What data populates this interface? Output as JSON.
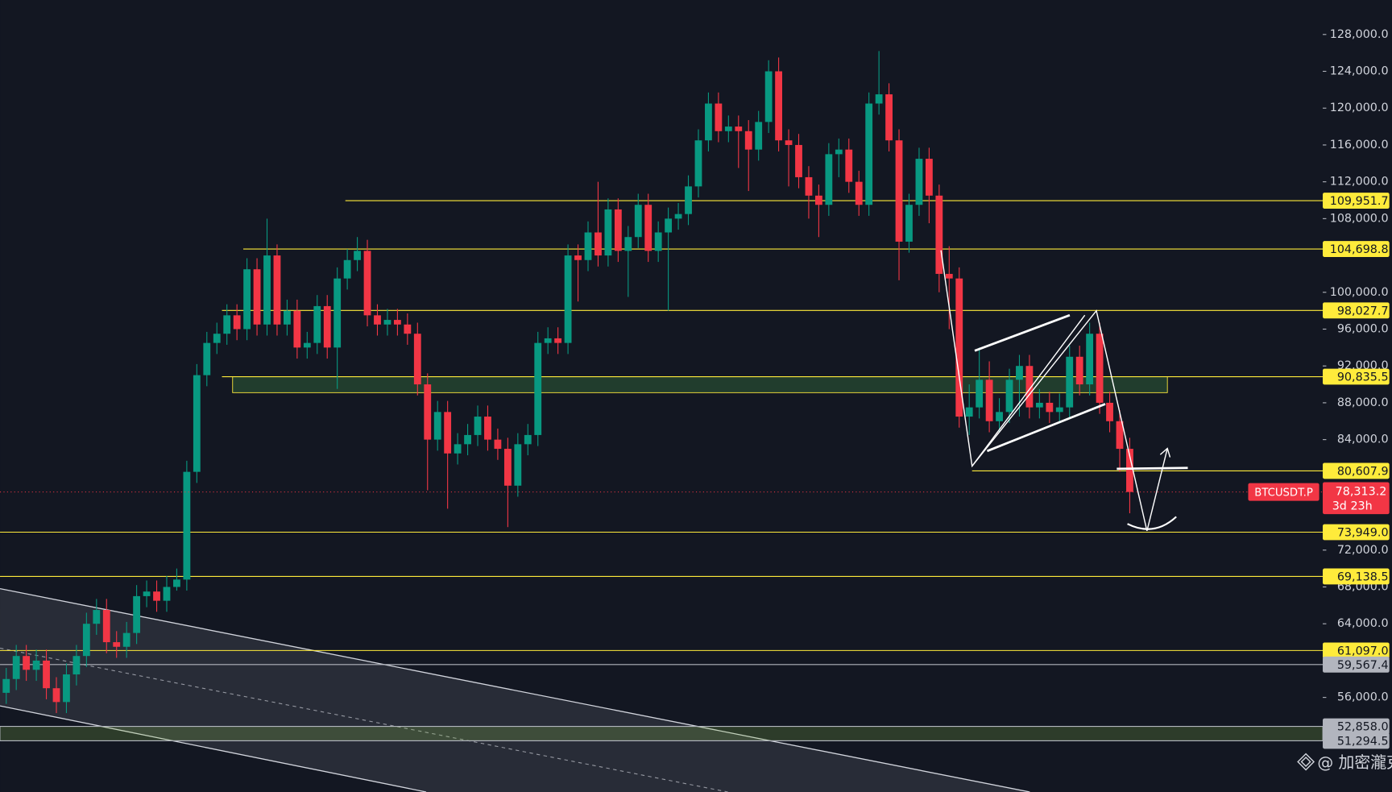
{
  "chart_data": {
    "type": "candlestick",
    "symbol": "BTCUSDT.P",
    "up_color": "#089981",
    "down_color": "#f23645",
    "open": [
      56500,
      58000,
      60500,
      59000,
      60000,
      57000,
      55500,
      58500,
      60500,
      64000,
      65500,
      62000,
      61500,
      63000,
      67000,
      67500,
      66500,
      68000,
      68800,
      80500,
      91000,
      94500,
      95500,
      97500,
      96000,
      102500,
      96500,
      104000,
      96500,
      98000,
      94000,
      94500,
      98500,
      94000,
      101500,
      103500,
      104500,
      97500,
      96500,
      97000,
      96500,
      95500,
      90000,
      84000,
      87000,
      82500,
      83500,
      84500,
      86500,
      84000,
      83000,
      79000,
      83500,
      84500,
      94500,
      95000,
      94500,
      104000,
      103500,
      106500,
      104000,
      109000,
      104500,
      106000,
      109500,
      104500,
      106500,
      108000,
      108500,
      111500,
      116500,
      120500,
      117500,
      118000,
      117500,
      115500,
      118500,
      124000,
      116500,
      116000,
      112500,
      110500,
      109500,
      115000,
      115500,
      112000,
      109500,
      120500,
      121500,
      116500,
      105500,
      109500,
      114500,
      110500,
      102000,
      101500,
      86500,
      87500,
      90500,
      86000,
      87000,
      90500,
      92000,
      87500,
      88000,
      87000,
      87500,
      93000,
      90000,
      95500,
      88000,
      86000,
      83000
    ],
    "high": [
      59200,
      61700,
      61700,
      61200,
      61200,
      58200,
      59700,
      61700,
      65200,
      66700,
      66700,
      63200,
      64200,
      68200,
      68700,
      68700,
      69200,
      70000,
      81700,
      92200,
      95700,
      96700,
      98700,
      98700,
      103700,
      103700,
      108000,
      105200,
      99200,
      99200,
      95700,
      99700,
      99700,
      102700,
      104700,
      106000,
      105700,
      98700,
      98200,
      98200,
      97700,
      96700,
      91200,
      88200,
      88200,
      84700,
      85700,
      87700,
      87700,
      85200,
      84200,
      84700,
      85700,
      95700,
      96200,
      96200,
      105200,
      105200,
      107700,
      112000,
      110200,
      110200,
      107200,
      110700,
      110700,
      107700,
      109200,
      109700,
      112700,
      117700,
      121700,
      121700,
      119200,
      119200,
      118700,
      119700,
      125200,
      125500,
      117700,
      117200,
      113700,
      111700,
      116200,
      116700,
      116700,
      113200,
      121700,
      126200,
      122700,
      117700,
      110700,
      115700,
      115700,
      111700,
      105000,
      102700,
      90000,
      94000,
      92500,
      88500,
      91700,
      93200,
      93200,
      89500,
      89200,
      89000,
      94200,
      94200,
      96700,
      96700,
      89200,
      87200,
      84200
    ],
    "low": [
      55300,
      56800,
      57800,
      57800,
      55800,
      54300,
      54300,
      57300,
      59300,
      62800,
      60800,
      60300,
      60300,
      61800,
      65800,
      65300,
      65300,
      67600,
      67600,
      79300,
      89800,
      93300,
      94300,
      94800,
      94800,
      95300,
      95300,
      95300,
      95300,
      92800,
      92800,
      93300,
      92800,
      89500,
      100300,
      102300,
      96300,
      95300,
      95300,
      95300,
      94300,
      88800,
      78500,
      82800,
      76500,
      81300,
      82300,
      83300,
      82800,
      81800,
      74500,
      77800,
      82300,
      83300,
      93300,
      93300,
      93300,
      99000,
      102300,
      102800,
      102800,
      103300,
      99500,
      104800,
      103300,
      103300,
      98000,
      106800,
      107300,
      110300,
      115300,
      116300,
      116300,
      113500,
      111000,
      114300,
      117300,
      115300,
      111500,
      111300,
      108000,
      106000,
      108300,
      112500,
      110800,
      108300,
      108300,
      119300,
      115300,
      101300,
      104300,
      108300,
      107500,
      100000,
      96000,
      85300,
      84500,
      86300,
      84800,
      84800,
      85800,
      86500,
      86300,
      86300,
      85800,
      85800,
      86300,
      88800,
      88800,
      86800,
      84800,
      80500,
      76000
    ],
    "close": [
      58000,
      60500,
      59000,
      60000,
      57000,
      55500,
      58500,
      60500,
      64000,
      65500,
      62000,
      61500,
      63000,
      67000,
      67500,
      66500,
      68000,
      68800,
      80500,
      91000,
      94500,
      95500,
      97500,
      96000,
      102500,
      96500,
      104000,
      96500,
      98000,
      94000,
      94500,
      98500,
      94000,
      101500,
      103500,
      104500,
      97500,
      96500,
      97000,
      96500,
      95500,
      90000,
      84000,
      87000,
      82500,
      83500,
      84500,
      86500,
      84000,
      83000,
      79000,
      83500,
      84500,
      94500,
      95000,
      94500,
      104000,
      103500,
      106500,
      104000,
      109000,
      104500,
      106000,
      109500,
      104500,
      106500,
      108000,
      108500,
      111500,
      116500,
      120500,
      117500,
      118000,
      117500,
      115500,
      118500,
      124000,
      116500,
      116000,
      112500,
      110500,
      109500,
      115000,
      115500,
      112000,
      109500,
      120500,
      121500,
      116500,
      105500,
      109500,
      114500,
      110500,
      102000,
      101500,
      86500,
      87500,
      90500,
      86000,
      87000,
      90500,
      92000,
      87500,
      88000,
      87000,
      87500,
      93000,
      90000,
      95500,
      88000,
      86000,
      83000,
      78313.2
    ],
    "ylim": [
      45729,
      131745
    ],
    "yticks": [
      {
        "value": 128000,
        "label": "128,000.0"
      },
      {
        "value": 124000,
        "label": "124,000.0"
      },
      {
        "value": 120000,
        "label": "120,000.0"
      },
      {
        "value": 116000,
        "label": "116,000.0"
      },
      {
        "value": 112000,
        "label": "112,000.0"
      },
      {
        "value": 108000,
        "label": "108,000.0"
      },
      {
        "value": 100000,
        "label": "100,000.0"
      },
      {
        "value": 96000,
        "label": "96,000.0"
      },
      {
        "value": 92000,
        "label": "92,000.0"
      },
      {
        "value": 88000,
        "label": "88,000.0"
      },
      {
        "value": 84000,
        "label": "84,000.0"
      },
      {
        "value": 72000,
        "label": "72,000.0"
      },
      {
        "value": 68000,
        "label": "68,000.0"
      },
      {
        "value": 64000,
        "label": "64,000.0"
      },
      {
        "value": 56000,
        "label": "56,000.0"
      }
    ],
    "levels": [
      {
        "value": 109951.7,
        "label": "109,951.7",
        "color": "#ffeb3b"
      },
      {
        "value": 104698.8,
        "label": "104,698.8",
        "color": "#ffeb3b"
      },
      {
        "value": 98027.7,
        "label": "98,027.7",
        "color": "#ffeb3b"
      },
      {
        "value": 90835.5,
        "label": "90,835.5",
        "color": "#ffeb3b"
      },
      {
        "value": 80607.9,
        "label": "80,607.9",
        "color": "#ffeb3b"
      },
      {
        "value": 73949.0,
        "label": "73,949.0",
        "color": "#ffeb3b"
      },
      {
        "value": 69138.5,
        "label": "69,138.5",
        "color": "#ffeb3b"
      },
      {
        "value": 61097.0,
        "label": "61,097.0",
        "color": "#ffeb3b"
      },
      {
        "value": 59567.4,
        "label": "59,567.4",
        "color": "#b2b5be"
      },
      {
        "value": 52858.0,
        "label": "52,858.0",
        "color": "#b2b5be"
      },
      {
        "value": 51294.5,
        "label": "51,294.5",
        "color": "#b2b5be"
      }
    ],
    "zones": [
      [
        89100,
        90835.5
      ],
      [
        51294.5,
        52858.0
      ]
    ],
    "last_price_label": "78,313.2",
    "countdown": "3d 23h",
    "watermark": "@ 加密瀧克"
  }
}
